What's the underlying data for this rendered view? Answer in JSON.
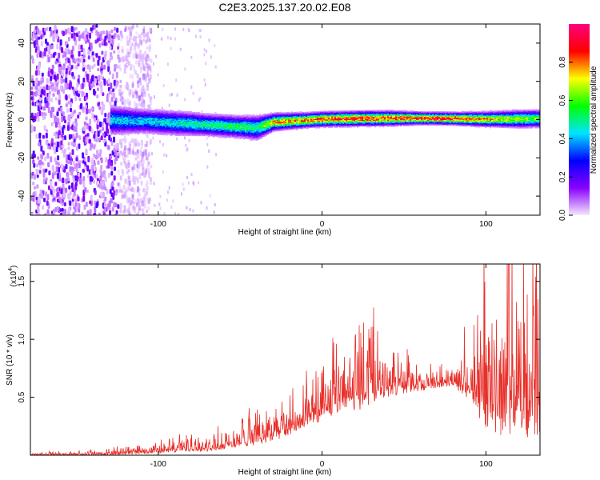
{
  "title": "C2E3.2025.137.20.02.E08",
  "chart_data": [
    {
      "type": "heatmap",
      "xlabel": "Height of straight line (km)",
      "ylabel": "Frequency (Hz)",
      "xlim": [
        -178,
        133
      ],
      "ylim": [
        -50,
        50
      ],
      "x_ticks": [
        -100,
        0,
        100
      ],
      "y_ticks": [
        -40,
        -20,
        0,
        20,
        40
      ],
      "grid": false,
      "colorbar": {
        "label": "Normalized spectral amplitude",
        "range": [
          0,
          1
        ],
        "ticks": [
          "0.0",
          "0.2",
          "0.4",
          "0.6",
          "0.8"
        ],
        "tick_values": [
          0,
          0.2,
          0.4,
          0.6,
          0.8
        ],
        "colormap": [
          "#f4e8ff",
          "#8a00ff",
          "#0000ff",
          "#00e5ff",
          "#00ff00",
          "#ffff00",
          "#ff0000",
          "#ff007f"
        ]
      },
      "ridge": {
        "x": [
          -130,
          -110,
          -90,
          -70,
          -50,
          -40,
          -30,
          -10,
          0,
          20,
          40,
          60,
          80,
          100,
          120,
          133
        ],
        "frequency_hz": [
          0,
          -0.5,
          -1.5,
          -2.5,
          -3.5,
          -4,
          -1,
          0,
          0.5,
          0.8,
          1,
          1,
          0.8,
          0.5,
          0.6,
          0.8
        ],
        "half_width_hz": [
          6,
          5,
          5,
          4.5,
          4.5,
          5,
          3.5,
          3,
          3,
          3,
          3,
          2.5,
          2.5,
          3,
          3.5,
          3.5
        ],
        "peak_amplitude": [
          0.45,
          0.45,
          0.5,
          0.55,
          0.6,
          0.55,
          0.8,
          0.85,
          0.9,
          0.95,
          0.9,
          0.95,
          0.95,
          0.8,
          0.7,
          0.65
        ]
      },
      "noise_region_x": [
        -178,
        -125
      ]
    },
    {
      "type": "line",
      "xlabel": "Height of straight line (km)",
      "ylabel": "SNR (10 * v/v)",
      "y_multiplier": "(x10",
      "y_multiplier_exp": "4",
      "y_multiplier_close": ")",
      "xlim": [
        -178,
        133
      ],
      "ylim": [
        0,
        1.65
      ],
      "x_ticks": [
        -100,
        0,
        100
      ],
      "y_ticks": [
        0.5,
        1.0,
        1.5
      ],
      "y_tick_labels": [
        "0.5",
        "1.0",
        "1.5"
      ],
      "grid": false,
      "series": [
        {
          "color": "#e8302a",
          "envelope_x": [
            -178,
            -150,
            -125,
            -110,
            -95,
            -85,
            -70,
            -60,
            -50,
            -40,
            -30,
            -20,
            -10,
            0,
            10,
            20,
            30,
            40,
            50,
            60,
            70,
            80,
            90,
            100,
            110,
            120,
            133
          ],
          "envelope_low": [
            0.0,
            0.0,
            0.0,
            0.01,
            0.02,
            0.03,
            0.03,
            0.04,
            0.06,
            0.08,
            0.12,
            0.16,
            0.2,
            0.28,
            0.34,
            0.38,
            0.42,
            0.48,
            0.52,
            0.55,
            0.58,
            0.6,
            0.45,
            0.2,
            0.12,
            0.12,
            0.15
          ],
          "envelope_high": [
            0.02,
            0.03,
            0.05,
            0.08,
            0.11,
            0.16,
            0.14,
            0.2,
            0.26,
            0.38,
            0.44,
            0.52,
            0.62,
            0.75,
            0.92,
            1.02,
            0.98,
            0.92,
            0.86,
            0.72,
            0.74,
            0.72,
            1.1,
            1.32,
            1.62,
            1.55,
            1.3
          ]
        }
      ]
    }
  ]
}
